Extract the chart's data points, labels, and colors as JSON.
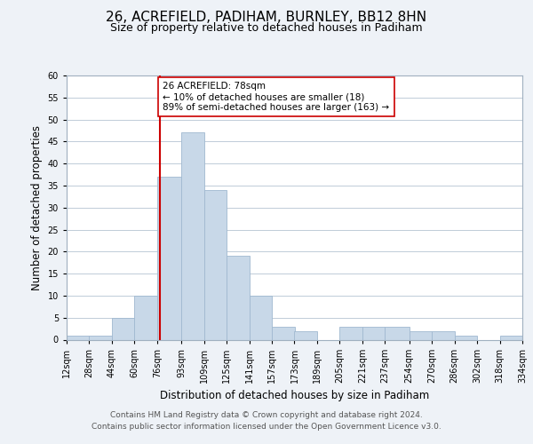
{
  "title": "26, ACREFIELD, PADIHAM, BURNLEY, BB12 8HN",
  "subtitle": "Size of property relative to detached houses in Padiham",
  "xlabel": "Distribution of detached houses by size in Padiham",
  "ylabel": "Number of detached properties",
  "bin_edges": [
    12,
    28,
    44,
    60,
    76,
    93,
    109,
    125,
    141,
    157,
    173,
    189,
    205,
    221,
    237,
    254,
    270,
    286,
    302,
    318,
    334
  ],
  "bin_labels": [
    "12sqm",
    "28sqm",
    "44sqm",
    "60sqm",
    "76sqm",
    "93sqm",
    "109sqm",
    "125sqm",
    "141sqm",
    "157sqm",
    "173sqm",
    "189sqm",
    "205sqm",
    "221sqm",
    "237sqm",
    "254sqm",
    "270sqm",
    "286sqm",
    "302sqm",
    "318sqm",
    "334sqm"
  ],
  "counts": [
    1,
    1,
    5,
    10,
    37,
    47,
    34,
    19,
    10,
    3,
    2,
    0,
    3,
    3,
    3,
    2,
    2,
    1,
    0,
    1
  ],
  "bar_color": "#c8d8e8",
  "bar_edge_color": "#a0b8d0",
  "property_value": 78,
  "property_line_color": "#cc0000",
  "annotation_line1": "26 ACREFIELD: 78sqm",
  "annotation_line2": "← 10% of detached houses are smaller (18)",
  "annotation_line3": "89% of semi-detached houses are larger (163) →",
  "annotation_box_edge_color": "#cc0000",
  "annotation_box_face_color": "#ffffff",
  "ylim": [
    0,
    60
  ],
  "yticks": [
    0,
    5,
    10,
    15,
    20,
    25,
    30,
    35,
    40,
    45,
    50,
    55,
    60
  ],
  "footer_line1": "Contains HM Land Registry data © Crown copyright and database right 2024.",
  "footer_line2": "Contains public sector information licensed under the Open Government Licence v3.0.",
  "background_color": "#eef2f7",
  "plot_background_color": "#ffffff",
  "grid_color": "#c0ccd8",
  "title_fontsize": 11,
  "subtitle_fontsize": 9,
  "axis_label_fontsize": 8.5,
  "tick_fontsize": 7,
  "footer_fontsize": 6.5,
  "annotation_fontsize": 7.5
}
